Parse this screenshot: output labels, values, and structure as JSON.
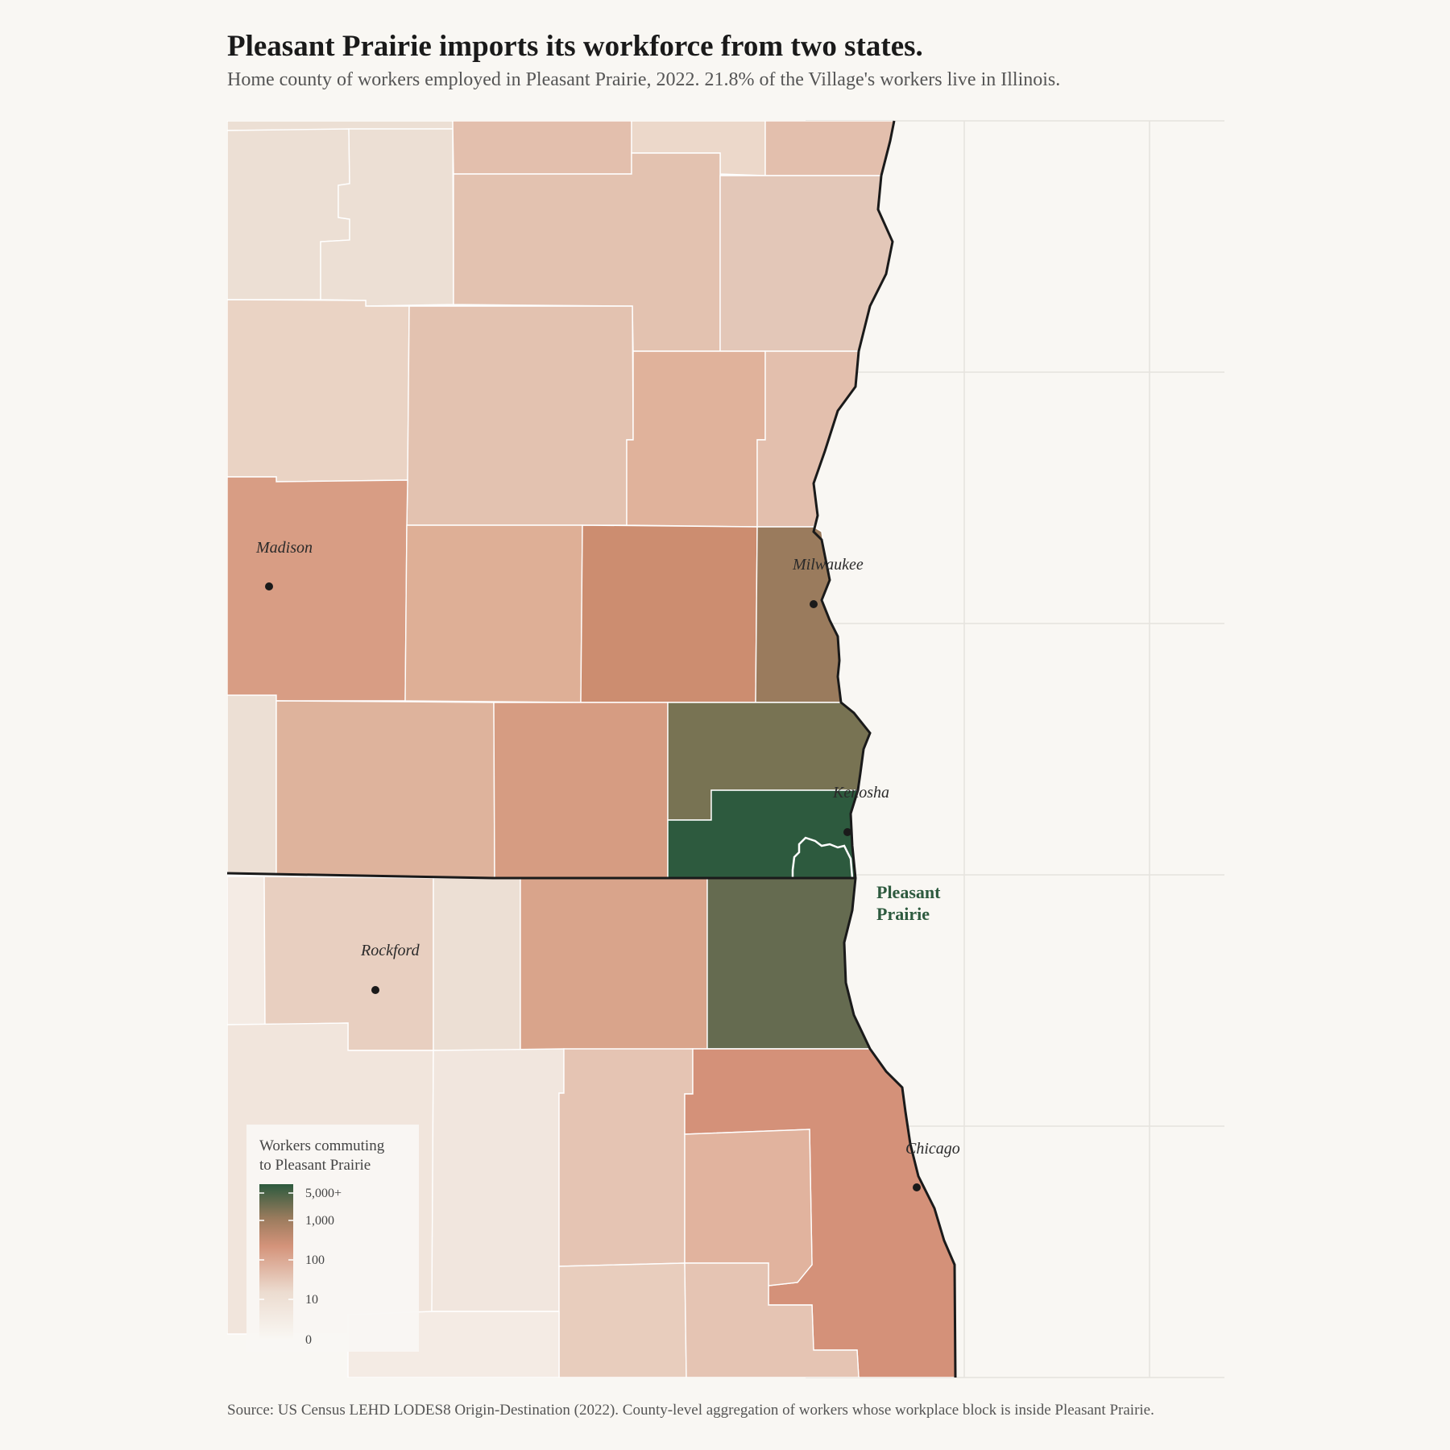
{
  "header": {
    "title": "Pleasant Prairie imports its workforce from two states.",
    "subtitle": "Home county of workers employed in Pleasant Prairie, 2022. 21.8% of the Village's workers live in Illinois."
  },
  "footer": {
    "source": "Source: US Census LEHD LODES8 Origin-Destination (2022). County-level aggregation of workers whose workplace block is inside Pleasant Prairie."
  },
  "map": {
    "cities": [
      {
        "name": "Madison"
      },
      {
        "name": "Milwaukee"
      },
      {
        "name": "Kenosha"
      },
      {
        "name": "Rockford"
      },
      {
        "name": "Chicago"
      }
    ],
    "highlight": {
      "line1": "Pleasant",
      "line2": "Prairie"
    },
    "legend": {
      "title_line1": "Workers commuting",
      "title_line2": "to Pleasant Prairie",
      "ticks": [
        "5,000+",
        "1,000",
        "100",
        "10",
        "0"
      ],
      "colors": {
        "high": "#2d5a3e",
        "upper_mid": "#9a7b5d",
        "mid": "#d4937a",
        "low": "#ecdcd0",
        "zero": "#f9f7f3"
      }
    }
  }
}
